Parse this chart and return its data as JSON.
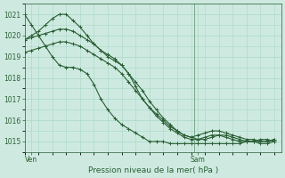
{
  "bg_color": "#ceeae0",
  "grid_color": "#a8d8c8",
  "line_color": "#2a5e35",
  "vline_color": "#5a8a6a",
  "xlabel": "Pression niveau de la mer( hPa )",
  "ylim": [
    1014.5,
    1021.5
  ],
  "yticks": [
    1015,
    1016,
    1017,
    1018,
    1019,
    1020,
    1021
  ],
  "xlim": [
    0,
    37
  ],
  "ven_x": 1,
  "sam_x": 25,
  "vline_x": 24.5,
  "series": [
    {
      "x": [
        0,
        1,
        2,
        3,
        4,
        5,
        6,
        7,
        8,
        9,
        10,
        11,
        12,
        13,
        14,
        15,
        16,
        17,
        18,
        19,
        20,
        21,
        22,
        23,
        24,
        25,
        26,
        27,
        28,
        29,
        30,
        31,
        32,
        33,
        34,
        35,
        36
      ],
      "y": [
        1021.0,
        1020.5,
        1020.0,
        1019.5,
        1019.0,
        1018.6,
        1018.5,
        1018.5,
        1018.4,
        1018.2,
        1017.7,
        1017.0,
        1016.5,
        1016.1,
        1015.8,
        1015.6,
        1015.4,
        1015.2,
        1015.0,
        1015.0,
        1015.0,
        1014.9,
        1014.9,
        1014.9,
        1014.9,
        1014.9,
        1014.9,
        1014.9,
        1014.9,
        1014.9,
        1014.9,
        1014.9,
        1015.0,
        1015.0,
        1015.1,
        1015.1,
        1015.0
      ]
    },
    {
      "x": [
        0,
        1,
        2,
        3,
        4,
        5,
        6,
        7,
        8,
        9,
        10,
        11,
        12,
        13,
        14,
        15,
        16,
        17,
        18,
        19,
        20,
        21,
        22,
        23,
        24,
        25,
        26,
        27,
        28,
        29,
        30,
        31,
        32,
        33,
        34,
        35,
        36
      ],
      "y": [
        1019.8,
        1020.0,
        1020.2,
        1020.5,
        1020.8,
        1021.0,
        1021.0,
        1020.7,
        1020.4,
        1020.0,
        1019.6,
        1019.3,
        1019.0,
        1018.8,
        1018.6,
        1018.2,
        1017.6,
        1017.0,
        1016.6,
        1016.3,
        1016.0,
        1015.7,
        1015.5,
        1015.3,
        1015.2,
        1015.1,
        1015.1,
        1015.2,
        1015.3,
        1015.3,
        1015.2,
        1015.1,
        1015.0,
        1015.0,
        1014.9,
        1014.9,
        1015.0
      ]
    },
    {
      "x": [
        0,
        1,
        2,
        3,
        4,
        5,
        6,
        7,
        8,
        9,
        10,
        11,
        12,
        13,
        14,
        15,
        16,
        17,
        18,
        19,
        20,
        21,
        22,
        23,
        24,
        25,
        26,
        27,
        28,
        29,
        30,
        31,
        32,
        33,
        34,
        35,
        36
      ],
      "y": [
        1019.8,
        1019.9,
        1020.0,
        1020.1,
        1020.2,
        1020.3,
        1020.3,
        1020.2,
        1020.0,
        1019.8,
        1019.6,
        1019.3,
        1019.1,
        1018.9,
        1018.6,
        1018.2,
        1017.8,
        1017.4,
        1016.9,
        1016.5,
        1016.1,
        1015.8,
        1015.5,
        1015.3,
        1015.2,
        1015.3,
        1015.4,
        1015.5,
        1015.5,
        1015.4,
        1015.3,
        1015.2,
        1015.1,
        1015.1,
        1015.0,
        1015.0,
        1015.1
      ]
    },
    {
      "x": [
        0,
        1,
        2,
        3,
        4,
        5,
        6,
        7,
        8,
        9,
        10,
        11,
        12,
        13,
        14,
        15,
        16,
        17,
        18,
        19,
        20,
        21,
        22,
        23,
        24,
        25,
        26,
        27,
        28,
        29,
        30,
        31,
        32,
        33,
        34,
        35,
        36
      ],
      "y": [
        1019.2,
        1019.3,
        1019.4,
        1019.5,
        1019.6,
        1019.7,
        1019.7,
        1019.6,
        1019.5,
        1019.3,
        1019.1,
        1018.9,
        1018.7,
        1018.5,
        1018.2,
        1017.8,
        1017.4,
        1017.0,
        1016.6,
        1016.2,
        1015.9,
        1015.6,
        1015.4,
        1015.2,
        1015.1,
        1015.1,
        1015.2,
        1015.3,
        1015.3,
        1015.2,
        1015.1,
        1015.0,
        1015.0,
        1015.0,
        1015.0,
        1015.0,
        1015.1
      ]
    }
  ],
  "marker": "+",
  "markersize": 3,
  "linewidth": 0.8
}
